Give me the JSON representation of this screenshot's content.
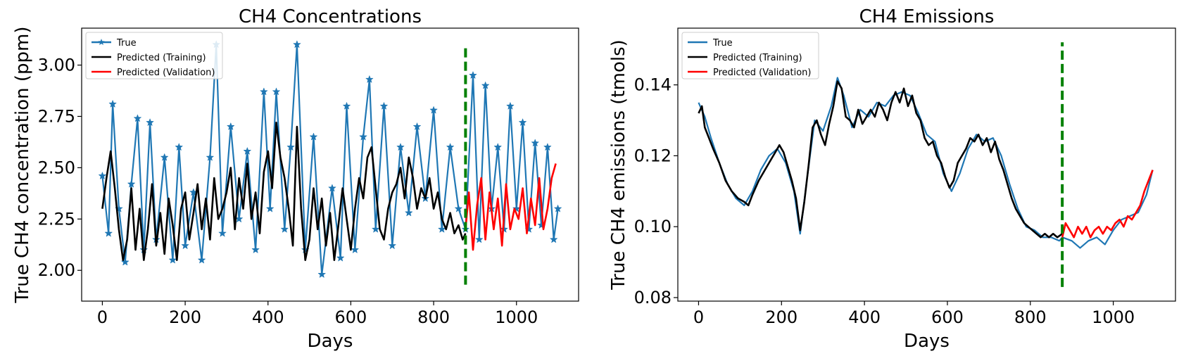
{
  "chart_data": [
    {
      "type": "line",
      "title": "CH4 Concentrations",
      "xlabel": "Days",
      "ylabel": "True CH4 concentration (ppm)",
      "xlim": [
        -50,
        1150
      ],
      "ylim": [
        1.85,
        3.18
      ],
      "xticks": [
        0,
        200,
        400,
        600,
        800,
        1000
      ],
      "yticks": [
        2.0,
        2.25,
        2.5,
        2.75,
        3.0
      ],
      "ytick_labels": [
        "2.00",
        "2.25",
        "2.50",
        "2.75",
        "3.00"
      ],
      "split_day": 877,
      "split_range": [
        1.93,
        3.1
      ],
      "legend": [
        "True",
        "Predicted (Training)",
        "Predicted (Validation)"
      ],
      "legend_loc": "upper left",
      "series": [
        {
          "name": "True",
          "color": "#1f77b4",
          "marker": "star",
          "x": [
            0,
            15,
            25,
            40,
            55,
            70,
            85,
            100,
            115,
            130,
            150,
            170,
            185,
            200,
            220,
            240,
            260,
            275,
            290,
            310,
            330,
            350,
            370,
            390,
            405,
            420,
            440,
            455,
            470,
            490,
            510,
            530,
            555,
            575,
            590,
            610,
            630,
            645,
            660,
            680,
            700,
            720,
            740,
            760,
            780,
            800,
            820,
            840,
            860,
            877,
            895,
            910,
            925,
            940,
            955,
            970,
            985,
            1000,
            1015,
            1030,
            1045,
            1060,
            1075,
            1090,
            1100
          ],
          "y": [
            2.46,
            2.18,
            2.81,
            2.3,
            2.04,
            2.42,
            2.74,
            2.1,
            2.72,
            2.15,
            2.55,
            2.05,
            2.6,
            2.12,
            2.38,
            2.05,
            2.55,
            3.1,
            2.18,
            2.7,
            2.25,
            2.58,
            2.1,
            2.87,
            2.3,
            2.87,
            2.2,
            2.6,
            3.1,
            2.1,
            2.65,
            1.98,
            2.4,
            2.06,
            2.8,
            2.1,
            2.65,
            2.93,
            2.2,
            2.8,
            2.12,
            2.6,
            2.28,
            2.7,
            2.35,
            2.78,
            2.2,
            2.6,
            2.3,
            2.2,
            2.95,
            2.15,
            2.9,
            2.3,
            2.6,
            2.2,
            2.8,
            2.3,
            2.72,
            2.2,
            2.62,
            2.22,
            2.6,
            2.15,
            2.3
          ]
        },
        {
          "name": "Predicted (Training)",
          "color": "#000000",
          "x": [
            0,
            10,
            20,
            30,
            40,
            50,
            60,
            70,
            80,
            90,
            100,
            110,
            120,
            130,
            140,
            150,
            160,
            170,
            180,
            190,
            200,
            210,
            220,
            230,
            240,
            250,
            260,
            270,
            280,
            290,
            300,
            310,
            320,
            330,
            340,
            350,
            360,
            370,
            380,
            390,
            400,
            410,
            420,
            430,
            440,
            450,
            460,
            470,
            480,
            490,
            500,
            510,
            520,
            530,
            540,
            550,
            560,
            570,
            580,
            590,
            600,
            610,
            620,
            630,
            640,
            650,
            660,
            670,
            680,
            690,
            700,
            710,
            720,
            730,
            740,
            750,
            760,
            770,
            780,
            790,
            800,
            810,
            820,
            830,
            840,
            850,
            860,
            870,
            877
          ],
          "y": [
            2.3,
            2.45,
            2.58,
            2.4,
            2.2,
            2.05,
            2.15,
            2.4,
            2.1,
            2.3,
            2.05,
            2.2,
            2.42,
            2.12,
            2.28,
            2.08,
            2.35,
            2.22,
            2.05,
            2.3,
            2.38,
            2.15,
            2.28,
            2.42,
            2.2,
            2.35,
            2.15,
            2.45,
            2.25,
            2.3,
            2.38,
            2.5,
            2.2,
            2.45,
            2.3,
            2.52,
            2.25,
            2.38,
            2.18,
            2.48,
            2.58,
            2.4,
            2.72,
            2.55,
            2.45,
            2.3,
            2.12,
            2.7,
            2.3,
            2.05,
            2.15,
            2.4,
            2.2,
            2.35,
            2.12,
            2.28,
            2.05,
            2.22,
            2.4,
            2.25,
            2.1,
            2.3,
            2.45,
            2.35,
            2.55,
            2.6,
            2.4,
            2.2,
            2.15,
            2.3,
            2.38,
            2.42,
            2.5,
            2.35,
            2.55,
            2.45,
            2.3,
            2.4,
            2.35,
            2.45,
            2.3,
            2.38,
            2.25,
            2.2,
            2.28,
            2.18,
            2.22,
            2.15,
            2.18
          ]
        },
        {
          "name": "Predicted (Validation)",
          "color": "#ff0000",
          "x": [
            877,
            885,
            895,
            905,
            915,
            925,
            935,
            945,
            955,
            965,
            975,
            985,
            995,
            1005,
            1015,
            1025,
            1035,
            1045,
            1055,
            1065,
            1075,
            1085,
            1095
          ],
          "y": [
            2.2,
            2.38,
            2.1,
            2.32,
            2.45,
            2.15,
            2.38,
            2.2,
            2.35,
            2.12,
            2.42,
            2.2,
            2.3,
            2.25,
            2.4,
            2.18,
            2.35,
            2.22,
            2.45,
            2.2,
            2.3,
            2.45,
            2.52
          ]
        }
      ]
    },
    {
      "type": "line",
      "title": "CH4 Emissions",
      "xlabel": "Days",
      "ylabel": "True CH4 emissions (tmols)",
      "xlim": [
        -50,
        1150
      ],
      "ylim": [
        0.079,
        0.156
      ],
      "xticks": [
        0,
        200,
        400,
        600,
        800,
        1000
      ],
      "yticks": [
        0.08,
        0.1,
        0.12,
        0.14
      ],
      "ytick_labels": [
        "0.08",
        "0.10",
        "0.12",
        "0.14"
      ],
      "split_day": 877,
      "split_range": [
        0.083,
        0.152
      ],
      "legend": [
        "True",
        "Predicted (Training)",
        "Predicted (Validation)"
      ],
      "legend_loc": "upper left",
      "series": [
        {
          "name": "True",
          "color": "#1f77b4",
          "x": [
            0,
            15,
            30,
            50,
            70,
            90,
            110,
            130,
            150,
            170,
            190,
            210,
            230,
            245,
            260,
            280,
            300,
            320,
            335,
            350,
            370,
            390,
            410,
            430,
            450,
            470,
            490,
            510,
            530,
            550,
            570,
            590,
            610,
            630,
            650,
            670,
            690,
            710,
            730,
            750,
            770,
            790,
            810,
            830,
            850,
            870,
            877,
            900,
            920,
            940,
            960,
            980,
            1000,
            1020,
            1040,
            1060,
            1080,
            1095
          ],
          "y": [
            0.135,
            0.131,
            0.125,
            0.118,
            0.112,
            0.108,
            0.106,
            0.11,
            0.116,
            0.12,
            0.122,
            0.118,
            0.11,
            0.098,
            0.112,
            0.13,
            0.127,
            0.134,
            0.142,
            0.137,
            0.128,
            0.133,
            0.131,
            0.135,
            0.134,
            0.137,
            0.138,
            0.137,
            0.132,
            0.126,
            0.124,
            0.115,
            0.11,
            0.115,
            0.122,
            0.126,
            0.124,
            0.125,
            0.12,
            0.112,
            0.105,
            0.1,
            0.099,
            0.097,
            0.097,
            0.096,
            0.097,
            0.096,
            0.094,
            0.096,
            0.097,
            0.095,
            0.099,
            0.102,
            0.103,
            0.104,
            0.109,
            0.116
          ]
        },
        {
          "name": "Predicted (Training)",
          "color": "#000000",
          "x": [
            0,
            8,
            15,
            25,
            35,
            50,
            65,
            80,
            95,
            110,
            120,
            130,
            145,
            160,
            175,
            185,
            195,
            205,
            215,
            225,
            235,
            245,
            255,
            265,
            275,
            285,
            295,
            305,
            315,
            325,
            335,
            345,
            355,
            365,
            375,
            385,
            395,
            405,
            415,
            425,
            435,
            445,
            455,
            465,
            475,
            485,
            495,
            505,
            515,
            525,
            535,
            545,
            555,
            565,
            575,
            585,
            595,
            605,
            615,
            625,
            635,
            645,
            655,
            665,
            675,
            685,
            695,
            705,
            715,
            725,
            735,
            745,
            755,
            765,
            775,
            785,
            795,
            805,
            815,
            825,
            835,
            845,
            855,
            865,
            877
          ],
          "y": [
            0.132,
            0.134,
            0.128,
            0.125,
            0.122,
            0.118,
            0.113,
            0.11,
            0.108,
            0.107,
            0.106,
            0.109,
            0.113,
            0.116,
            0.119,
            0.121,
            0.123,
            0.121,
            0.117,
            0.113,
            0.108,
            0.099,
            0.107,
            0.117,
            0.128,
            0.13,
            0.126,
            0.123,
            0.129,
            0.134,
            0.141,
            0.139,
            0.131,
            0.13,
            0.128,
            0.133,
            0.129,
            0.131,
            0.133,
            0.131,
            0.135,
            0.133,
            0.13,
            0.135,
            0.138,
            0.135,
            0.139,
            0.134,
            0.137,
            0.132,
            0.13,
            0.125,
            0.123,
            0.124,
            0.12,
            0.118,
            0.114,
            0.111,
            0.113,
            0.118,
            0.12,
            0.122,
            0.125,
            0.124,
            0.126,
            0.123,
            0.125,
            0.121,
            0.124,
            0.119,
            0.116,
            0.112,
            0.108,
            0.105,
            0.103,
            0.101,
            0.1,
            0.099,
            0.098,
            0.097,
            0.098,
            0.097,
            0.098,
            0.097,
            0.098
          ]
        },
        {
          "name": "Predicted (Validation)",
          "color": "#ff0000",
          "x": [
            877,
            885,
            895,
            905,
            915,
            925,
            935,
            945,
            955,
            965,
            975,
            985,
            995,
            1005,
            1015,
            1025,
            1035,
            1045,
            1055,
            1065,
            1075,
            1085,
            1095
          ],
          "y": [
            0.097,
            0.101,
            0.099,
            0.097,
            0.1,
            0.098,
            0.1,
            0.097,
            0.099,
            0.1,
            0.098,
            0.1,
            0.099,
            0.101,
            0.102,
            0.1,
            0.103,
            0.102,
            0.104,
            0.106,
            0.11,
            0.113,
            0.116
          ]
        }
      ]
    }
  ]
}
